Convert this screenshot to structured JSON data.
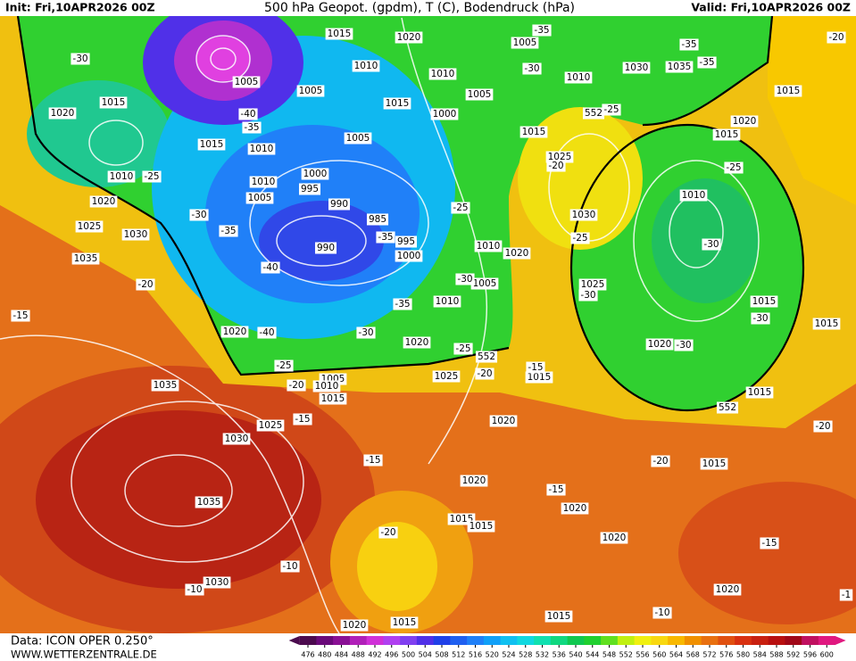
{
  "header": {
    "init": "Init: Fri,10APR2026 00Z",
    "title": "500 hPa Geopot. (gpdm), T (C), Bodendruck (hPa)",
    "valid": "Valid: Fri,10APR2026 00Z"
  },
  "footer": {
    "data_source": "Data: ICON OPER 0.250°",
    "website": "WWW.WETTERZENTRALE.DE"
  },
  "colorbar": {
    "ticks": [
      476,
      480,
      484,
      488,
      492,
      496,
      500,
      504,
      508,
      512,
      516,
      520,
      524,
      528,
      532,
      536,
      540,
      544,
      548,
      552,
      556,
      560,
      564,
      568,
      572,
      576,
      580,
      584,
      588,
      592,
      596,
      600
    ],
    "colors": [
      "#4b0a4e",
      "#6a0a7a",
      "#8a1095",
      "#b020b8",
      "#d030d8",
      "#b040f0",
      "#8040f0",
      "#5030e8",
      "#2040e8",
      "#2060f0",
      "#2080f8",
      "#10a0f8",
      "#10c0f0",
      "#10d8e0",
      "#10e0b0",
      "#10d880",
      "#10c850",
      "#20d030",
      "#60e020",
      "#c0f010",
      "#f0f010",
      "#f8d810",
      "#f8b800",
      "#f09000",
      "#e87010",
      "#e05010",
      "#d83010",
      "#c82010",
      "#b81010",
      "#a00818",
      "#c01060",
      "#e01880"
    ]
  },
  "map_labels": {
    "isobars": [
      1015,
      1020,
      1005,
      1010,
      1030,
      1035,
      1015,
      1005,
      1005,
      1010,
      1005,
      1015,
      1020,
      1015,
      1000,
      1010,
      1015,
      1020,
      1015,
      1015,
      1010,
      1005,
      1025,
      1010,
      1000,
      1010,
      995,
      1005,
      990,
      1020,
      1030,
      1010,
      985,
      1025,
      1030,
      995,
      990,
      1010,
      1020,
      1000,
      1035,
      1005,
      1025,
      1010,
      1015,
      1015,
      1020,
      1020,
      1020,
      1005,
      1025,
      1015,
      1010,
      1015,
      1015,
      1035,
      1020,
      1025,
      1030,
      1015,
      1020,
      1035,
      1020,
      1015,
      1015,
      1020,
      1030,
      1020,
      1015,
      1020,
      1015
    ],
    "temperatures": [
      -35,
      -35,
      -20,
      -30,
      -35,
      -30,
      -40,
      -35,
      -25,
      -20,
      -25,
      -25,
      -30,
      -25,
      -35,
      -25,
      -30,
      -20,
      -40,
      -35,
      -30,
      -30,
      -15,
      -35,
      -30,
      -40,
      -30,
      -30,
      -25,
      -25,
      -20,
      -20,
      -15,
      -15,
      -20,
      -15,
      -20,
      -15,
      -20,
      -15,
      -10,
      -10,
      -10,
      -1
    ],
    "isohypse_552": [
      552,
      552,
      552
    ]
  }
}
